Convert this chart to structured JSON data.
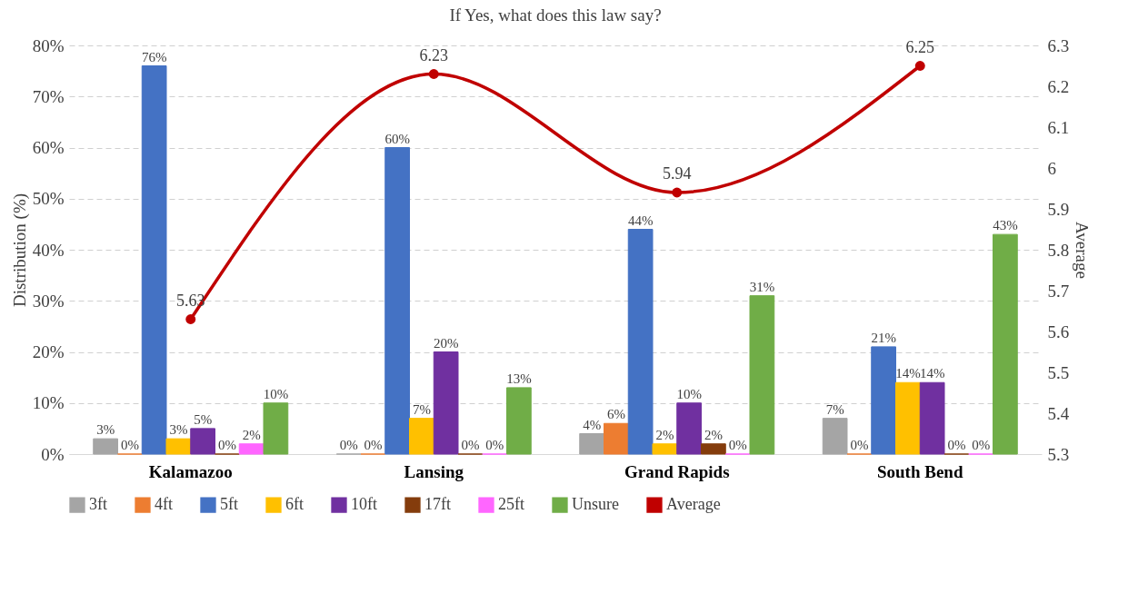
{
  "chart_data": {
    "type": "bar",
    "title": "If Yes, what does this law say?",
    "ylabel": "Distribution (%)",
    "y2label": "Average",
    "categories": [
      "Kalamazoo",
      "Lansing",
      "Grand Rapids",
      "South Bend"
    ],
    "ylim": [
      0,
      80
    ],
    "yticks": [
      {
        "value": 0,
        "label": "0%"
      },
      {
        "value": 10,
        "label": "10%"
      },
      {
        "value": 20,
        "label": "20%"
      },
      {
        "value": 30,
        "label": "30%"
      },
      {
        "value": 40,
        "label": "40%"
      },
      {
        "value": 50,
        "label": "50%"
      },
      {
        "value": 60,
        "label": "60%"
      },
      {
        "value": 70,
        "label": "70%"
      },
      {
        "value": 80,
        "label": "80%"
      }
    ],
    "y2lim": [
      5.3,
      6.3
    ],
    "y2ticks": [
      5.3,
      5.4,
      5.5,
      5.6,
      5.7,
      5.8,
      5.9,
      6,
      6.1,
      6.2,
      6.3
    ],
    "grid": "y",
    "legend": "bottom",
    "series": [
      {
        "name": "3ft",
        "color": "#a5a5a5",
        "values": [
          3,
          0,
          4,
          7
        ],
        "value_labels": [
          "3%",
          "0%",
          "4%",
          "7%"
        ]
      },
      {
        "name": "4ft",
        "color": "#ed7d31",
        "values": [
          0,
          0,
          6,
          0
        ],
        "value_labels": [
          "0%",
          "0%",
          "6%",
          "0%"
        ]
      },
      {
        "name": "5ft",
        "color": "#4472c4",
        "values": [
          76,
          60,
          44,
          21
        ],
        "value_labels": [
          "76%",
          "60%",
          "44%",
          "21%"
        ]
      },
      {
        "name": "6ft",
        "color": "#ffc000",
        "values": [
          3,
          7,
          2,
          14
        ],
        "value_labels": [
          "3%",
          "7%",
          "2%",
          "14%"
        ]
      },
      {
        "name": "10ft",
        "color": "#7030a0",
        "values": [
          5,
          20,
          10,
          14
        ],
        "value_labels": [
          "5%",
          "20%",
          "10%",
          "14%"
        ]
      },
      {
        "name": "17ft",
        "color": "#843c0c",
        "values": [
          0,
          0,
          2,
          0
        ],
        "value_labels": [
          "0%",
          "0%",
          "2%",
          "0%"
        ]
      },
      {
        "name": "25ft",
        "color": "#ff66ff",
        "values": [
          2,
          0,
          0,
          0
        ],
        "value_labels": [
          "2%",
          "0%",
          "0%",
          "0%"
        ]
      },
      {
        "name": "Unsure",
        "color": "#70ad47",
        "values": [
          10,
          13,
          31,
          43
        ],
        "value_labels": [
          "10%",
          "13%",
          "31%",
          "43%"
        ]
      },
      {
        "name": "Average",
        "type": "line",
        "axis": "y2",
        "marker": "circle",
        "color": "#c00000",
        "values": [
          5.63,
          6.23,
          5.94,
          6.25
        ],
        "value_labels": [
          "5.63",
          "6.23",
          "5.94",
          "6.25"
        ]
      }
    ]
  }
}
